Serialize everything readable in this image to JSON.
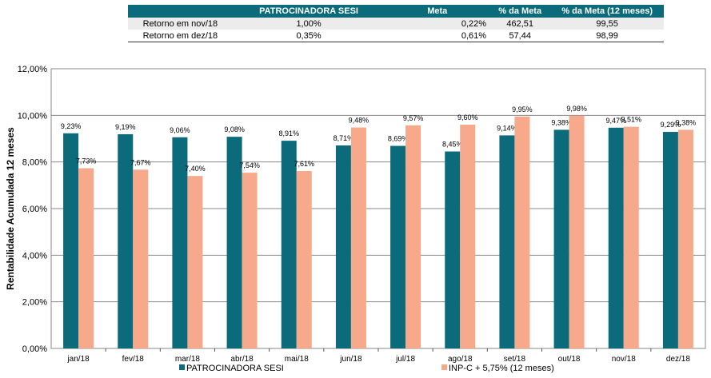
{
  "table": {
    "headers": [
      "",
      "PATROCINADORA SESI",
      "Meta",
      "% da Meta",
      "% da Meta (12 meses)"
    ],
    "rows": [
      [
        "Retorno em nov/18",
        "1,00%",
        "0,22%",
        "462,51",
        "99,55"
      ],
      [
        "Retorno em dez/18",
        "0,35%",
        "0,61%",
        "57,44",
        "98,99"
      ]
    ]
  },
  "colors": {
    "series1": "#0b6b7a",
    "series2": "#f7a98b",
    "header_bg": "#0b6b7a"
  },
  "chart_data": {
    "type": "bar",
    "ylabel": "Rentabilidade Acumulada 12 meses",
    "ylim": [
      0,
      12
    ],
    "yticks": [
      "0,00%",
      "2,00%",
      "4,00%",
      "6,00%",
      "8,00%",
      "10,00%",
      "12,00%"
    ],
    "grid": true,
    "legend": "bottom",
    "categories": [
      "jan/18",
      "fev/18",
      "mar/18",
      "abr/18",
      "mai/18",
      "jun/18",
      "jul/18",
      "ago/18",
      "set/18",
      "out/18",
      "nov/18",
      "dez/18"
    ],
    "series": [
      {
        "name": "PATROCINADORA SESI",
        "values": [
          9.23,
          9.19,
          9.06,
          9.08,
          8.91,
          8.71,
          8.69,
          8.45,
          9.14,
          9.38,
          9.47,
          9.29
        ],
        "labels": [
          "9,23%",
          "9,19%",
          "9,06%",
          "9,08%",
          "8,91%",
          "8,71%",
          "8,69%",
          "8,45%",
          "9,14%",
          "9,38%",
          "9,47%",
          "9,29%"
        ]
      },
      {
        "name": "INP-C + 5,75% (12 meses)",
        "values": [
          7.73,
          7.67,
          7.4,
          7.54,
          7.61,
          9.48,
          9.57,
          9.6,
          9.95,
          9.98,
          9.51,
          9.38
        ],
        "labels": [
          "7,73%",
          "7,67%",
          "7,40%",
          "7,54%",
          "7,61%",
          "9,48%",
          "9,57%",
          "9,60%",
          "9,95%",
          "9,98%",
          "9,51%",
          "9,38%"
        ]
      }
    ]
  }
}
